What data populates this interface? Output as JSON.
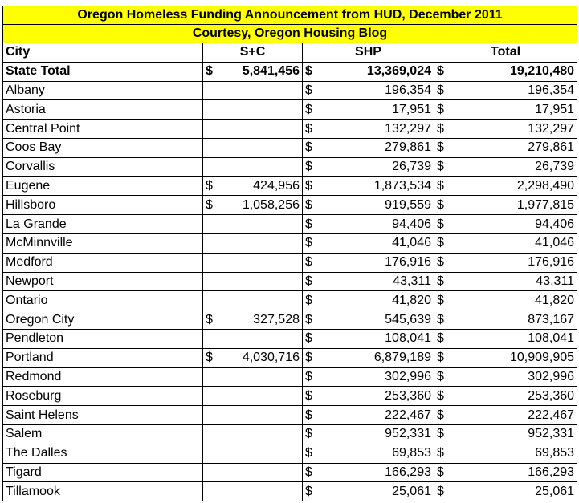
{
  "title": "Oregon Homeless Funding Announcement from HUD, December 2011",
  "subtitle": "Courtesy, Oregon Housing Blog",
  "columns": [
    "City",
    "S+C",
    "SHP",
    "Total"
  ],
  "currency_symbol": "$",
  "state_total": {
    "city": "State Total",
    "sc": "5,841,456",
    "shp": "13,369,024",
    "total": "19,210,480"
  },
  "rows": [
    {
      "city": "Albany",
      "sc": "",
      "shp": "196,354",
      "total": "196,354"
    },
    {
      "city": "Astoria",
      "sc": "",
      "shp": "17,951",
      "total": "17,951"
    },
    {
      "city": "Central Point",
      "sc": "",
      "shp": "132,297",
      "total": "132,297"
    },
    {
      "city": "Coos Bay",
      "sc": "",
      "shp": "279,861",
      "total": "279,861"
    },
    {
      "city": "Corvallis",
      "sc": "",
      "shp": "26,739",
      "total": "26,739"
    },
    {
      "city": "Eugene",
      "sc": "424,956",
      "shp": "1,873,534",
      "total": "2,298,490"
    },
    {
      "city": "Hillsboro",
      "sc": "1,058,256",
      "shp": "919,559",
      "total": "1,977,815"
    },
    {
      "city": "La Grande",
      "sc": "",
      "shp": "94,406",
      "total": "94,406"
    },
    {
      "city": "McMinnville",
      "sc": "",
      "shp": "41,046",
      "total": "41,046"
    },
    {
      "city": "Medford",
      "sc": "",
      "shp": "176,916",
      "total": "176,916"
    },
    {
      "city": "Newport",
      "sc": "",
      "shp": "43,311",
      "total": "43,311"
    },
    {
      "city": "Ontario",
      "sc": "",
      "shp": "41,820",
      "total": "41,820"
    },
    {
      "city": "Oregon City",
      "sc": "327,528",
      "shp": "545,639",
      "total": "873,167"
    },
    {
      "city": "Pendleton",
      "sc": "",
      "shp": "108,041",
      "total": "108,041"
    },
    {
      "city": "Portland",
      "sc": "4,030,716",
      "shp": "6,879,189",
      "total": "10,909,905"
    },
    {
      "city": "Redmond",
      "sc": "",
      "shp": "302,996",
      "total": "302,996"
    },
    {
      "city": "Roseburg",
      "sc": "",
      "shp": "253,360",
      "total": "253,360"
    },
    {
      "city": "Saint Helens",
      "sc": "",
      "shp": "222,467",
      "total": "222,467"
    },
    {
      "city": "Salem",
      "sc": "",
      "shp": "952,331",
      "total": "952,331"
    },
    {
      "city": "The Dalles",
      "sc": "",
      "shp": "69,853",
      "total": "69,853"
    },
    {
      "city": "Tigard",
      "sc": "",
      "shp": "166,293",
      "total": "166,293"
    },
    {
      "city": "Tillamook",
      "sc": "",
      "shp": "25,061",
      "total": "25,061"
    }
  ]
}
